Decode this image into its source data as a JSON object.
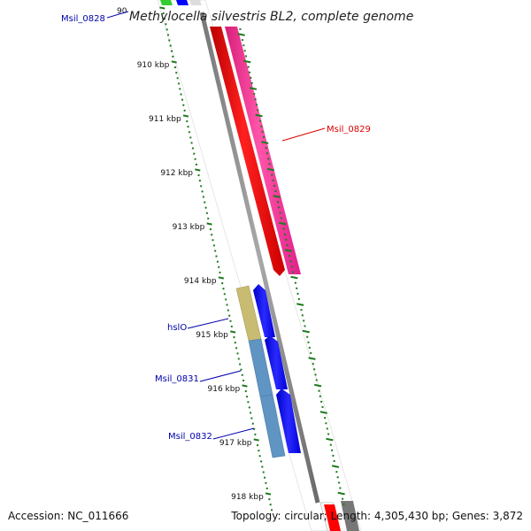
{
  "title": "Methylocella silvestris BL2, complete genome",
  "partial_tick": "90",
  "ticks": [
    "910 kbp",
    "911 kbp",
    "912 kbp",
    "913 kbp",
    "914 kbp",
    "915 kbp",
    "916 kbp",
    "917 kbp",
    "918 kbp"
  ],
  "genes": {
    "msil_0828": {
      "label": "Msil_0828",
      "color": "#0000aa"
    },
    "msil_0829": {
      "label": "Msil_0829",
      "color": "#dd0000"
    },
    "hslo": {
      "label": "hslO",
      "color": "#0000aa"
    },
    "msil_0831": {
      "label": "Msil_0831",
      "color": "#0000aa"
    },
    "msil_0832": {
      "label": "Msil_0832",
      "color": "#0000aa"
    }
  },
  "colors": {
    "backbone": "#8a8a8a",
    "red_gene": "#ff0000",
    "pink_gene": "#ff3399",
    "blue_gene": "#0000ff",
    "khaki": "#c8bc73",
    "steelblue": "#5f94c3",
    "green_ticks": "#1e7a1e"
  },
  "footer": {
    "accession": "Accession: NC_011666",
    "topology": "Topology: circular; Length: 4,305,430 bp; Genes: 3,872"
  }
}
